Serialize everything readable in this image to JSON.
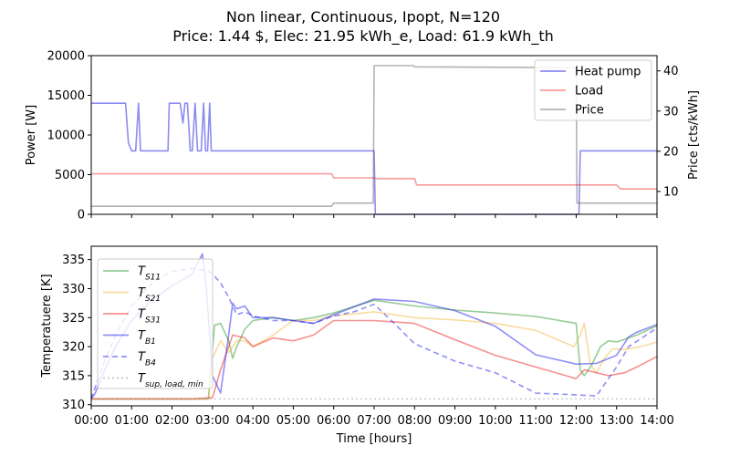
{
  "title_line1": "Non linear, Continuous, Ipopt, N=120",
  "title_line2": "Price: 1.44 $, Elec: 21.95 kWh_e, Load: 61.9 kWh_th",
  "colors": {
    "heat_pump": "#0000dd",
    "load": "#ee2222",
    "price": "#555555",
    "t_s11": "#2e9a2e",
    "t_s21": "#f5b941",
    "t_s31": "#ee2222",
    "t_b": "#2222ee",
    "t_sup": "#aaaaaa"
  },
  "chart_data": [
    {
      "type": "line",
      "panel": "top",
      "ylabel": "Power [W]",
      "ylabel_right": "Price [cts/kWh]",
      "ylim": [
        0,
        20000
      ],
      "yticks": [
        0,
        5000,
        10000,
        15000,
        20000
      ],
      "ylim_right": [
        4.3,
        43.8
      ],
      "yticks_right": [
        10,
        20,
        30,
        40
      ],
      "xlim": [
        0,
        14
      ],
      "legend_position": "top-right",
      "series": [
        {
          "name": "Heat pump",
          "axis": "left",
          "x": [
            0,
            0.85,
            0.92,
            1.0,
            1.1,
            1.17,
            1.22,
            1.3,
            1.9,
            1.93,
            2.2,
            2.27,
            2.32,
            2.38,
            2.45,
            2.5,
            2.57,
            2.63,
            2.72,
            2.78,
            2.83,
            2.88,
            2.93,
            2.97,
            7.0,
            7.03,
            12.07,
            12.1,
            14.0
          ],
          "values": [
            14000,
            14000,
            9000,
            8000,
            8000,
            14000,
            8000,
            8000,
            8000,
            14000,
            14000,
            11500,
            14000,
            14000,
            8000,
            8000,
            14000,
            8000,
            8000,
            14000,
            8000,
            8000,
            14000,
            8000,
            8000,
            0,
            0,
            8000,
            8000
          ]
        },
        {
          "name": "Load",
          "axis": "left",
          "x": [
            0,
            5.95,
            6.0,
            7.0,
            7.05,
            8.0,
            8.05,
            13.0,
            13.1,
            14.0
          ],
          "values": [
            5100,
            5100,
            4600,
            4600,
            4500,
            4500,
            3700,
            3700,
            3200,
            3200
          ]
        },
        {
          "name": "Price",
          "axis": "right",
          "x": [
            0,
            5.95,
            6.0,
            6.98,
            7.0,
            7.02,
            7.97,
            8.0,
            11.97,
            12.0,
            12.02,
            14.0
          ],
          "values": [
            6.3,
            6.3,
            7.1,
            7.1,
            41.3,
            41.3,
            41.3,
            41.0,
            40.8,
            40.8,
            7.1,
            7.1
          ]
        }
      ]
    },
    {
      "type": "line",
      "panel": "bottom",
      "ylabel": "Temperatuere [K]",
      "xlabel": "Time [hours]",
      "ylim": [
        309.8,
        337.3
      ],
      "yticks": [
        310,
        315,
        320,
        325,
        330,
        335
      ],
      "xlim": [
        0,
        14
      ],
      "xticks": [
        "00:00",
        "01:00",
        "02:00",
        "03:00",
        "04:00",
        "05:00",
        "06:00",
        "07:00",
        "08:00",
        "09:00",
        "10:00",
        "11:00",
        "12:00",
        "13:00",
        "14:00"
      ],
      "legend_position": "upper left",
      "series": [
        {
          "name": "T_S11",
          "label_main": "T",
          "label_sub": "S11",
          "dash": "solid",
          "x": [
            0,
            0.5,
            1.0,
            1.5,
            2.0,
            2.5,
            2.9,
            3.05,
            3.2,
            3.4,
            3.5,
            3.6,
            3.8,
            4.0,
            4.5,
            5.0,
            5.5,
            6.0,
            7.0,
            8.0,
            9.0,
            10.0,
            11.0,
            12.0,
            12.1,
            12.2,
            12.4,
            12.6,
            12.8,
            13.0,
            13.5,
            14.0
          ],
          "values": [
            311,
            311,
            311,
            311,
            311,
            311,
            311,
            323.7,
            324,
            321,
            318,
            320,
            323,
            324.5,
            325,
            324.5,
            325,
            325.8,
            328,
            327,
            326.3,
            325.8,
            325.2,
            324,
            316,
            315,
            317,
            320,
            321,
            320.8,
            322,
            323.6
          ]
        },
        {
          "name": "T_S21",
          "label_main": "T",
          "label_sub": "S21",
          "dash": "solid",
          "x": [
            0,
            0.5,
            1.0,
            1.5,
            2.0,
            2.5,
            2.9,
            3.0,
            3.2,
            3.4,
            3.6,
            3.8,
            4.0,
            4.5,
            5.0,
            5.5,
            6.0,
            7.0,
            8.0,
            9.0,
            10.0,
            11.0,
            11.95,
            12.1,
            12.2,
            12.35,
            12.5,
            12.7,
            12.9,
            13.2,
            13.6,
            14.0
          ],
          "values": [
            311,
            311,
            311,
            311,
            311,
            311,
            311,
            318,
            321,
            319,
            321,
            321,
            320,
            322,
            324.5,
            324.5,
            325.3,
            326,
            325,
            324.6,
            324,
            322.8,
            320,
            322,
            324,
            317,
            315.5,
            318,
            319.6,
            319.5,
            320,
            320.8
          ]
        },
        {
          "name": "T_S31",
          "label_main": "T",
          "label_sub": "S31",
          "dash": "solid",
          "x": [
            0,
            0.5,
            1.0,
            1.5,
            2.0,
            2.5,
            3.0,
            3.2,
            3.5,
            3.8,
            4.0,
            4.5,
            5.0,
            5.5,
            6.0,
            7.0,
            8.0,
            9.0,
            10.0,
            11.0,
            12.0,
            12.2,
            12.5,
            12.8,
            13.2,
            13.5,
            14.0
          ],
          "values": [
            311,
            311,
            311,
            311,
            311,
            311,
            311.2,
            316,
            322,
            321.5,
            320,
            321.5,
            321,
            322,
            324.5,
            324.5,
            324,
            321.2,
            318.5,
            316.5,
            314.5,
            316,
            315.5,
            315,
            315.5,
            316.5,
            318.3
          ]
        },
        {
          "name": "T_B1",
          "label_main": "T",
          "label_sub": "B1",
          "dash": "solid",
          "x": [
            0,
            0.1,
            0.3,
            0.6,
            1.0,
            1.5,
            2.0,
            2.5,
            2.75,
            2.85,
            3.0,
            3.2,
            3.4,
            3.5,
            3.6,
            3.8,
            4.0,
            4.5,
            5.0,
            5.5,
            6.0,
            7.0,
            8.0,
            9.0,
            10.0,
            11.0,
            12.0,
            12.5,
            13.0,
            13.3,
            13.5,
            14.0
          ],
          "values": [
            311,
            312,
            315.5,
            320,
            324.5,
            328,
            330.5,
            332.5,
            336,
            330,
            315,
            312,
            322,
            327.5,
            326.5,
            327,
            325,
            325,
            324.5,
            324,
            325.5,
            328.2,
            327.8,
            326.2,
            323.5,
            318.6,
            317,
            317.1,
            318.5,
            321.7,
            322.5,
            323.8
          ]
        },
        {
          "name": "T_B4",
          "label_main": "T",
          "label_sub": "B4",
          "dash": "dashed",
          "x": [
            0,
            0.1,
            0.3,
            0.6,
            1.0,
            1.5,
            2.0,
            2.5,
            2.9,
            3.0,
            3.2,
            3.4,
            3.6,
            3.8,
            4.0,
            4.5,
            5.0,
            5.5,
            6.0,
            6.5,
            7.0,
            7.5,
            8.0,
            9.0,
            10.0,
            11.0,
            12.0,
            12.5,
            12.7,
            13.0,
            13.3,
            14.0
          ],
          "values": [
            311,
            313,
            317,
            322,
            327,
            331,
            333,
            333.5,
            333,
            332.5,
            331,
            328.5,
            325.5,
            326,
            325.3,
            324.5,
            324.5,
            324,
            325.3,
            326,
            327.3,
            324,
            320.5,
            317.5,
            315.5,
            312,
            311.7,
            311.5,
            313.5,
            316.5,
            320,
            323.2
          ]
        },
        {
          "name": "T_sup,load,min",
          "label_main": "T",
          "label_sub": "sup, load, min",
          "dash": "dotted",
          "x": [
            0,
            14
          ],
          "values": [
            311,
            311
          ]
        }
      ]
    }
  ]
}
